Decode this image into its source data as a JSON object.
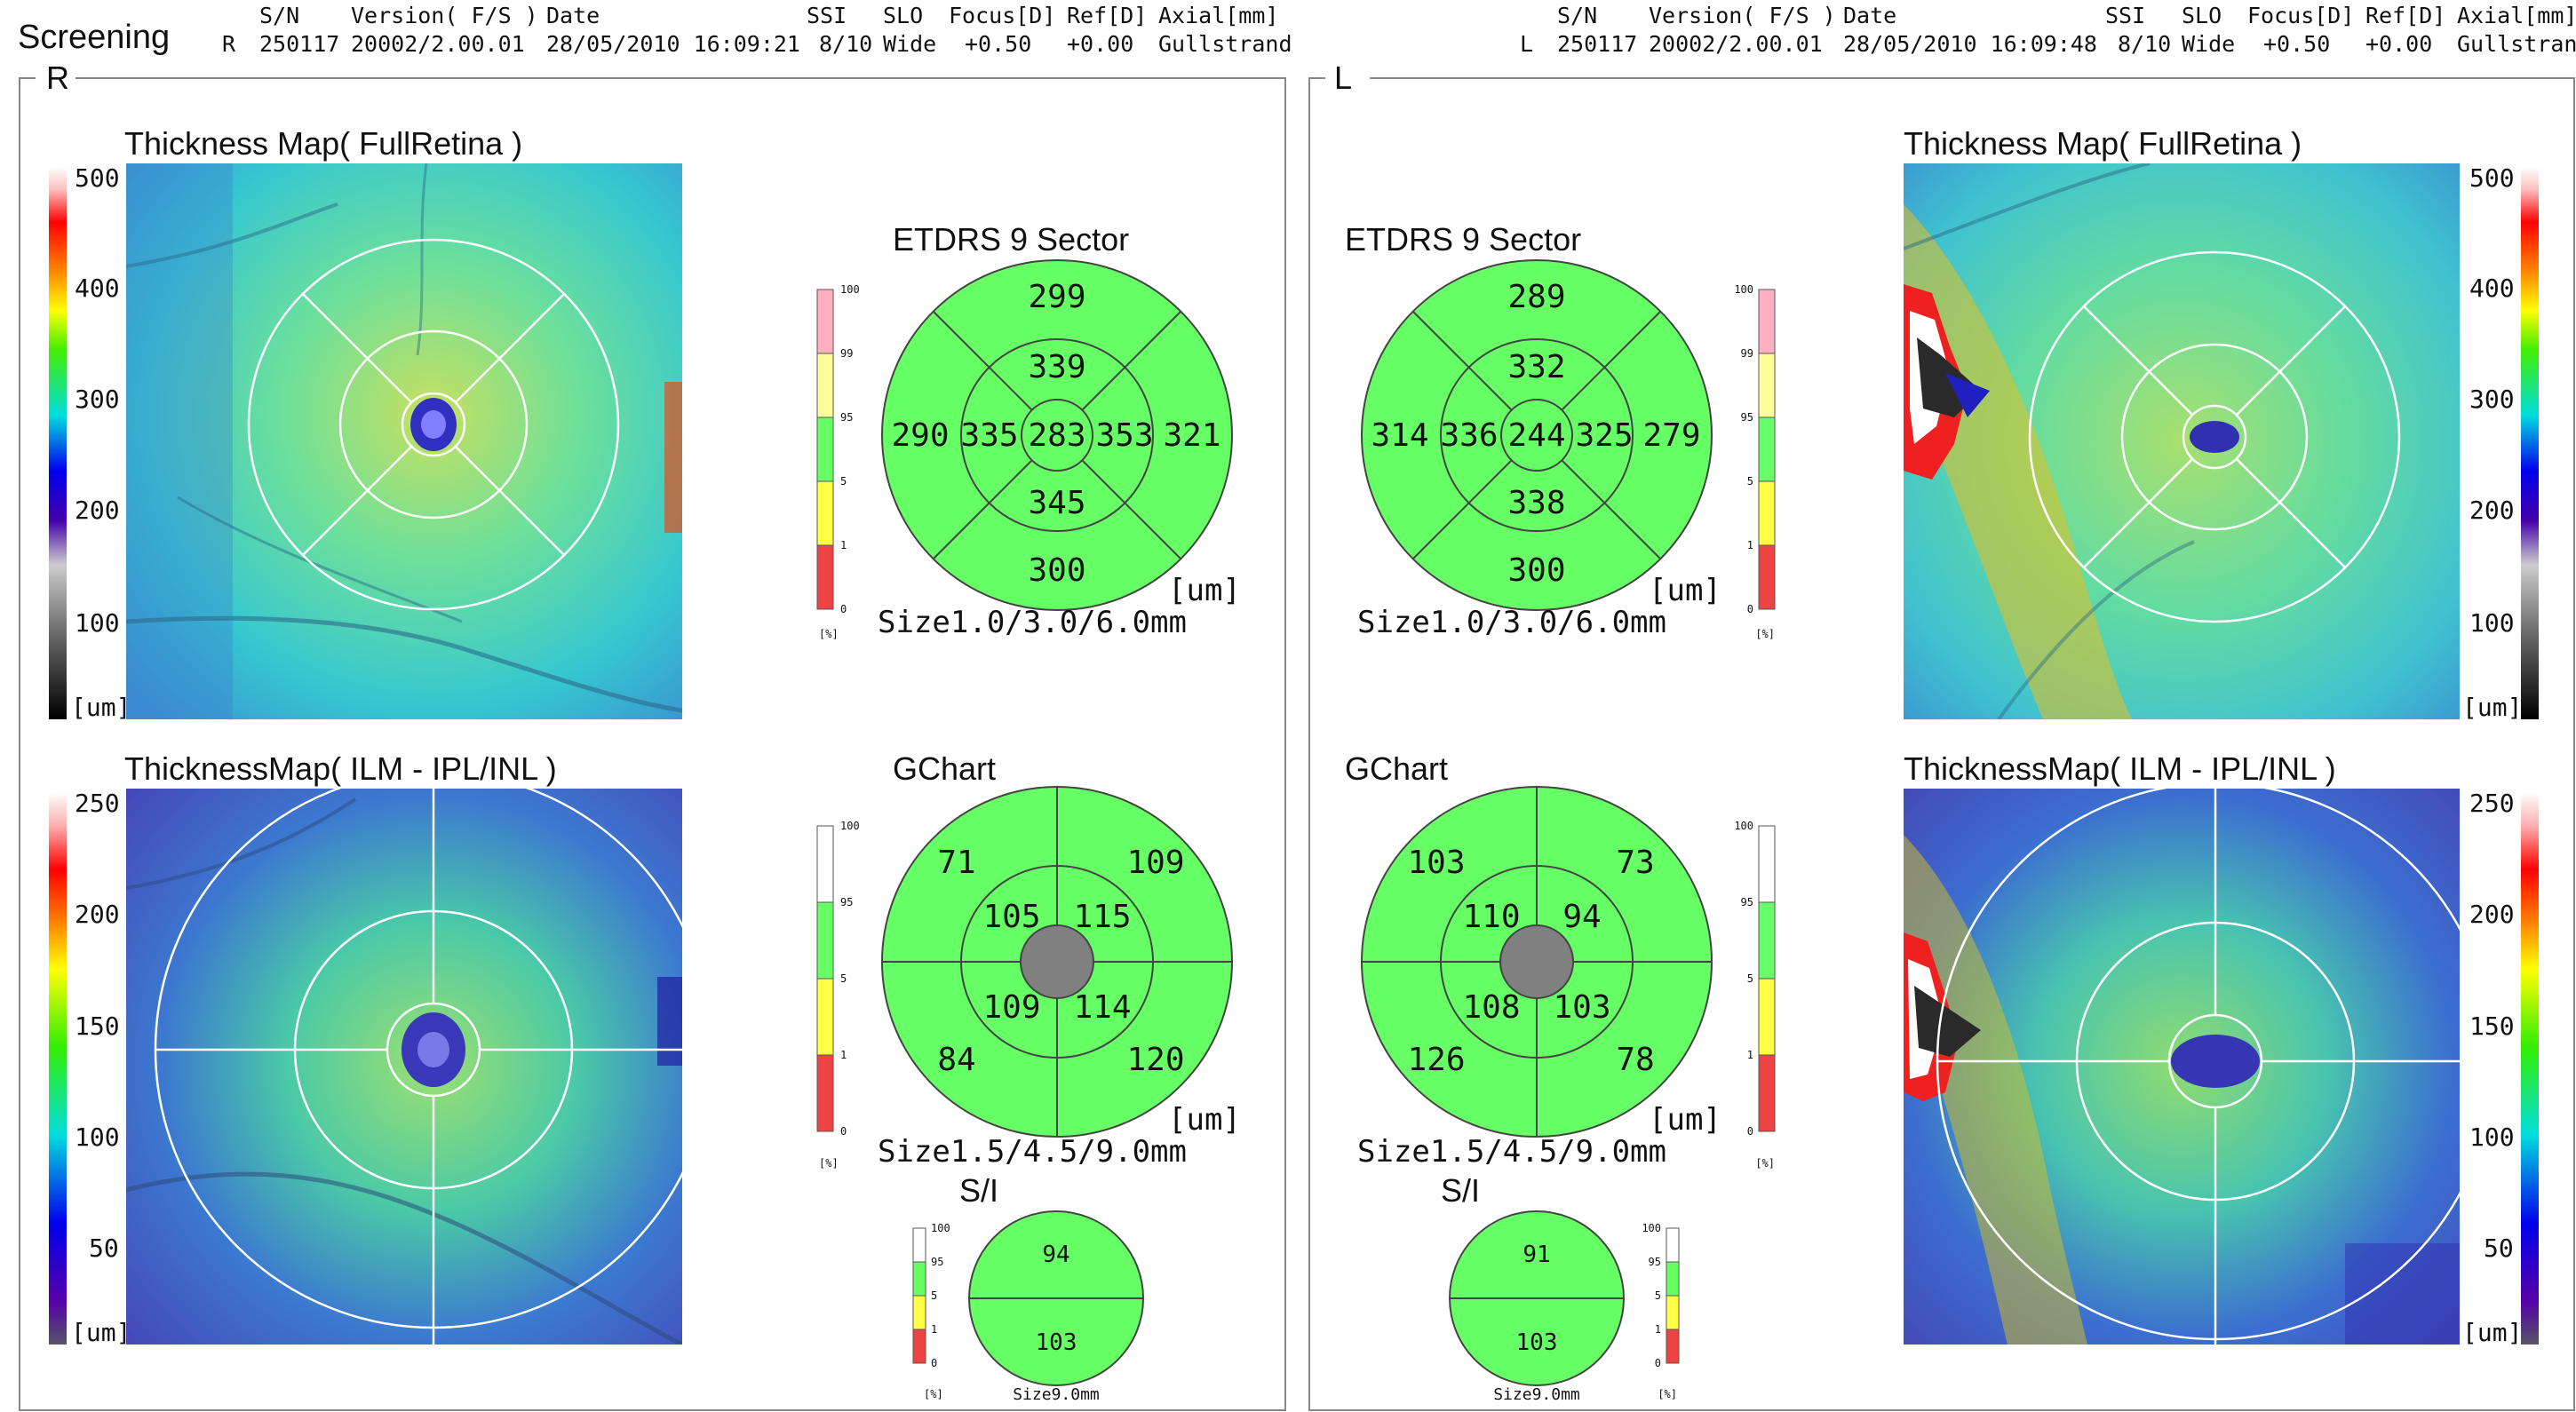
{
  "page_title": "Screening",
  "header_labels": {
    "sn": "S/N",
    "version": "Version( F/S )",
    "date": "Date",
    "ssi": "SSI",
    "slo": "SLO",
    "focus": "Focus[D]",
    "ref": "Ref[D]",
    "axial": "Axial[mm]"
  },
  "eyes": {
    "R": {
      "side": "R",
      "exam": {
        "side": "R",
        "sn": "250117",
        "version": "20002/2.00.01",
        "date": "28/05/2010 16:09:21",
        "ssi": "8/10",
        "slo": "Wide",
        "focus": "+0.50",
        "ref": "+0.00",
        "axial": "Gullstrand"
      },
      "map1_title": "Thickness Map( FullRetina )",
      "map2_title": "ThicknessMap( ILM - IPL/INL )",
      "etdrs": {
        "title": "ETDRS 9 Sector",
        "center": "283",
        "inner": {
          "top": "339",
          "nasal": "335",
          "temporal": "353",
          "bottom": "345"
        },
        "outer": {
          "top": "299",
          "left": "290",
          "right": "321",
          "bottom": "300"
        },
        "unit": "[um]",
        "size": "Size1.0/3.0/6.0mm"
      },
      "gchart": {
        "title": "GChart",
        "outer": {
          "tl": "71",
          "tr": "109",
          "bl": "84",
          "br": "120"
        },
        "inner": {
          "tl": "105",
          "tr": "115",
          "bl": "109",
          "br": "114"
        },
        "unit": "[um]",
        "size": "Size1.5/4.5/9.0mm"
      },
      "si": {
        "title": "S/I",
        "superior": "94",
        "inferior": "103",
        "size": "Size9.0mm"
      }
    },
    "L": {
      "side": "L",
      "exam": {
        "side": "L",
        "sn": "250117",
        "version": "20002/2.00.01",
        "date": "28/05/2010 16:09:48",
        "ssi": "8/10",
        "slo": "Wide",
        "focus": "+0.50",
        "ref": "+0.00",
        "axial": "Gullstrand"
      },
      "map1_title": "Thickness Map( FullRetina )",
      "map2_title": "ThicknessMap( ILM - IPL/INL )",
      "etdrs": {
        "title": "ETDRS 9 Sector",
        "center": "244",
        "inner": {
          "top": "332",
          "nasal": "325",
          "temporal": "336",
          "bottom": "338"
        },
        "outer": {
          "top": "289",
          "left": "314",
          "right": "279",
          "bottom": "300"
        },
        "unit": "[um]",
        "size": "Size1.0/3.0/6.0mm"
      },
      "gchart": {
        "title": "GChart",
        "outer": {
          "tl": "103",
          "tr": "73",
          "bl": "126",
          "br": "78"
        },
        "inner": {
          "tl": "110",
          "tr": "94",
          "bl": "108",
          "br": "103"
        },
        "unit": "[um]",
        "size": "Size1.5/4.5/9.0mm"
      },
      "si": {
        "title": "S/I",
        "superior": "91",
        "inferior": "103",
        "size": "Size9.0mm"
      }
    }
  },
  "thickness_scale_full": {
    "ticks": [
      "500",
      "400",
      "300",
      "200",
      "100"
    ],
    "unit": "[um]"
  },
  "thickness_scale_gcl": {
    "ticks": [
      "250",
      "200",
      "150",
      "100",
      "50"
    ],
    "unit": "[um]"
  },
  "normative_scale": {
    "ticks": [
      "100",
      "99",
      "95",
      "5",
      "1",
      "0"
    ],
    "unit": "[%]"
  },
  "normative_scale_short": {
    "ticks": [
      "100",
      "95",
      "5",
      "1",
      "0"
    ],
    "unit": "[%]"
  },
  "colors": {
    "normal_green": "#66ff66",
    "borderline_yellow": "#ffff44",
    "outside_red": "#ee4444",
    "supernormal_pink": "#ffb0c0",
    "light_yellow": "#ffff99",
    "white": "#ffffff",
    "fovea_gray": "#808080"
  }
}
